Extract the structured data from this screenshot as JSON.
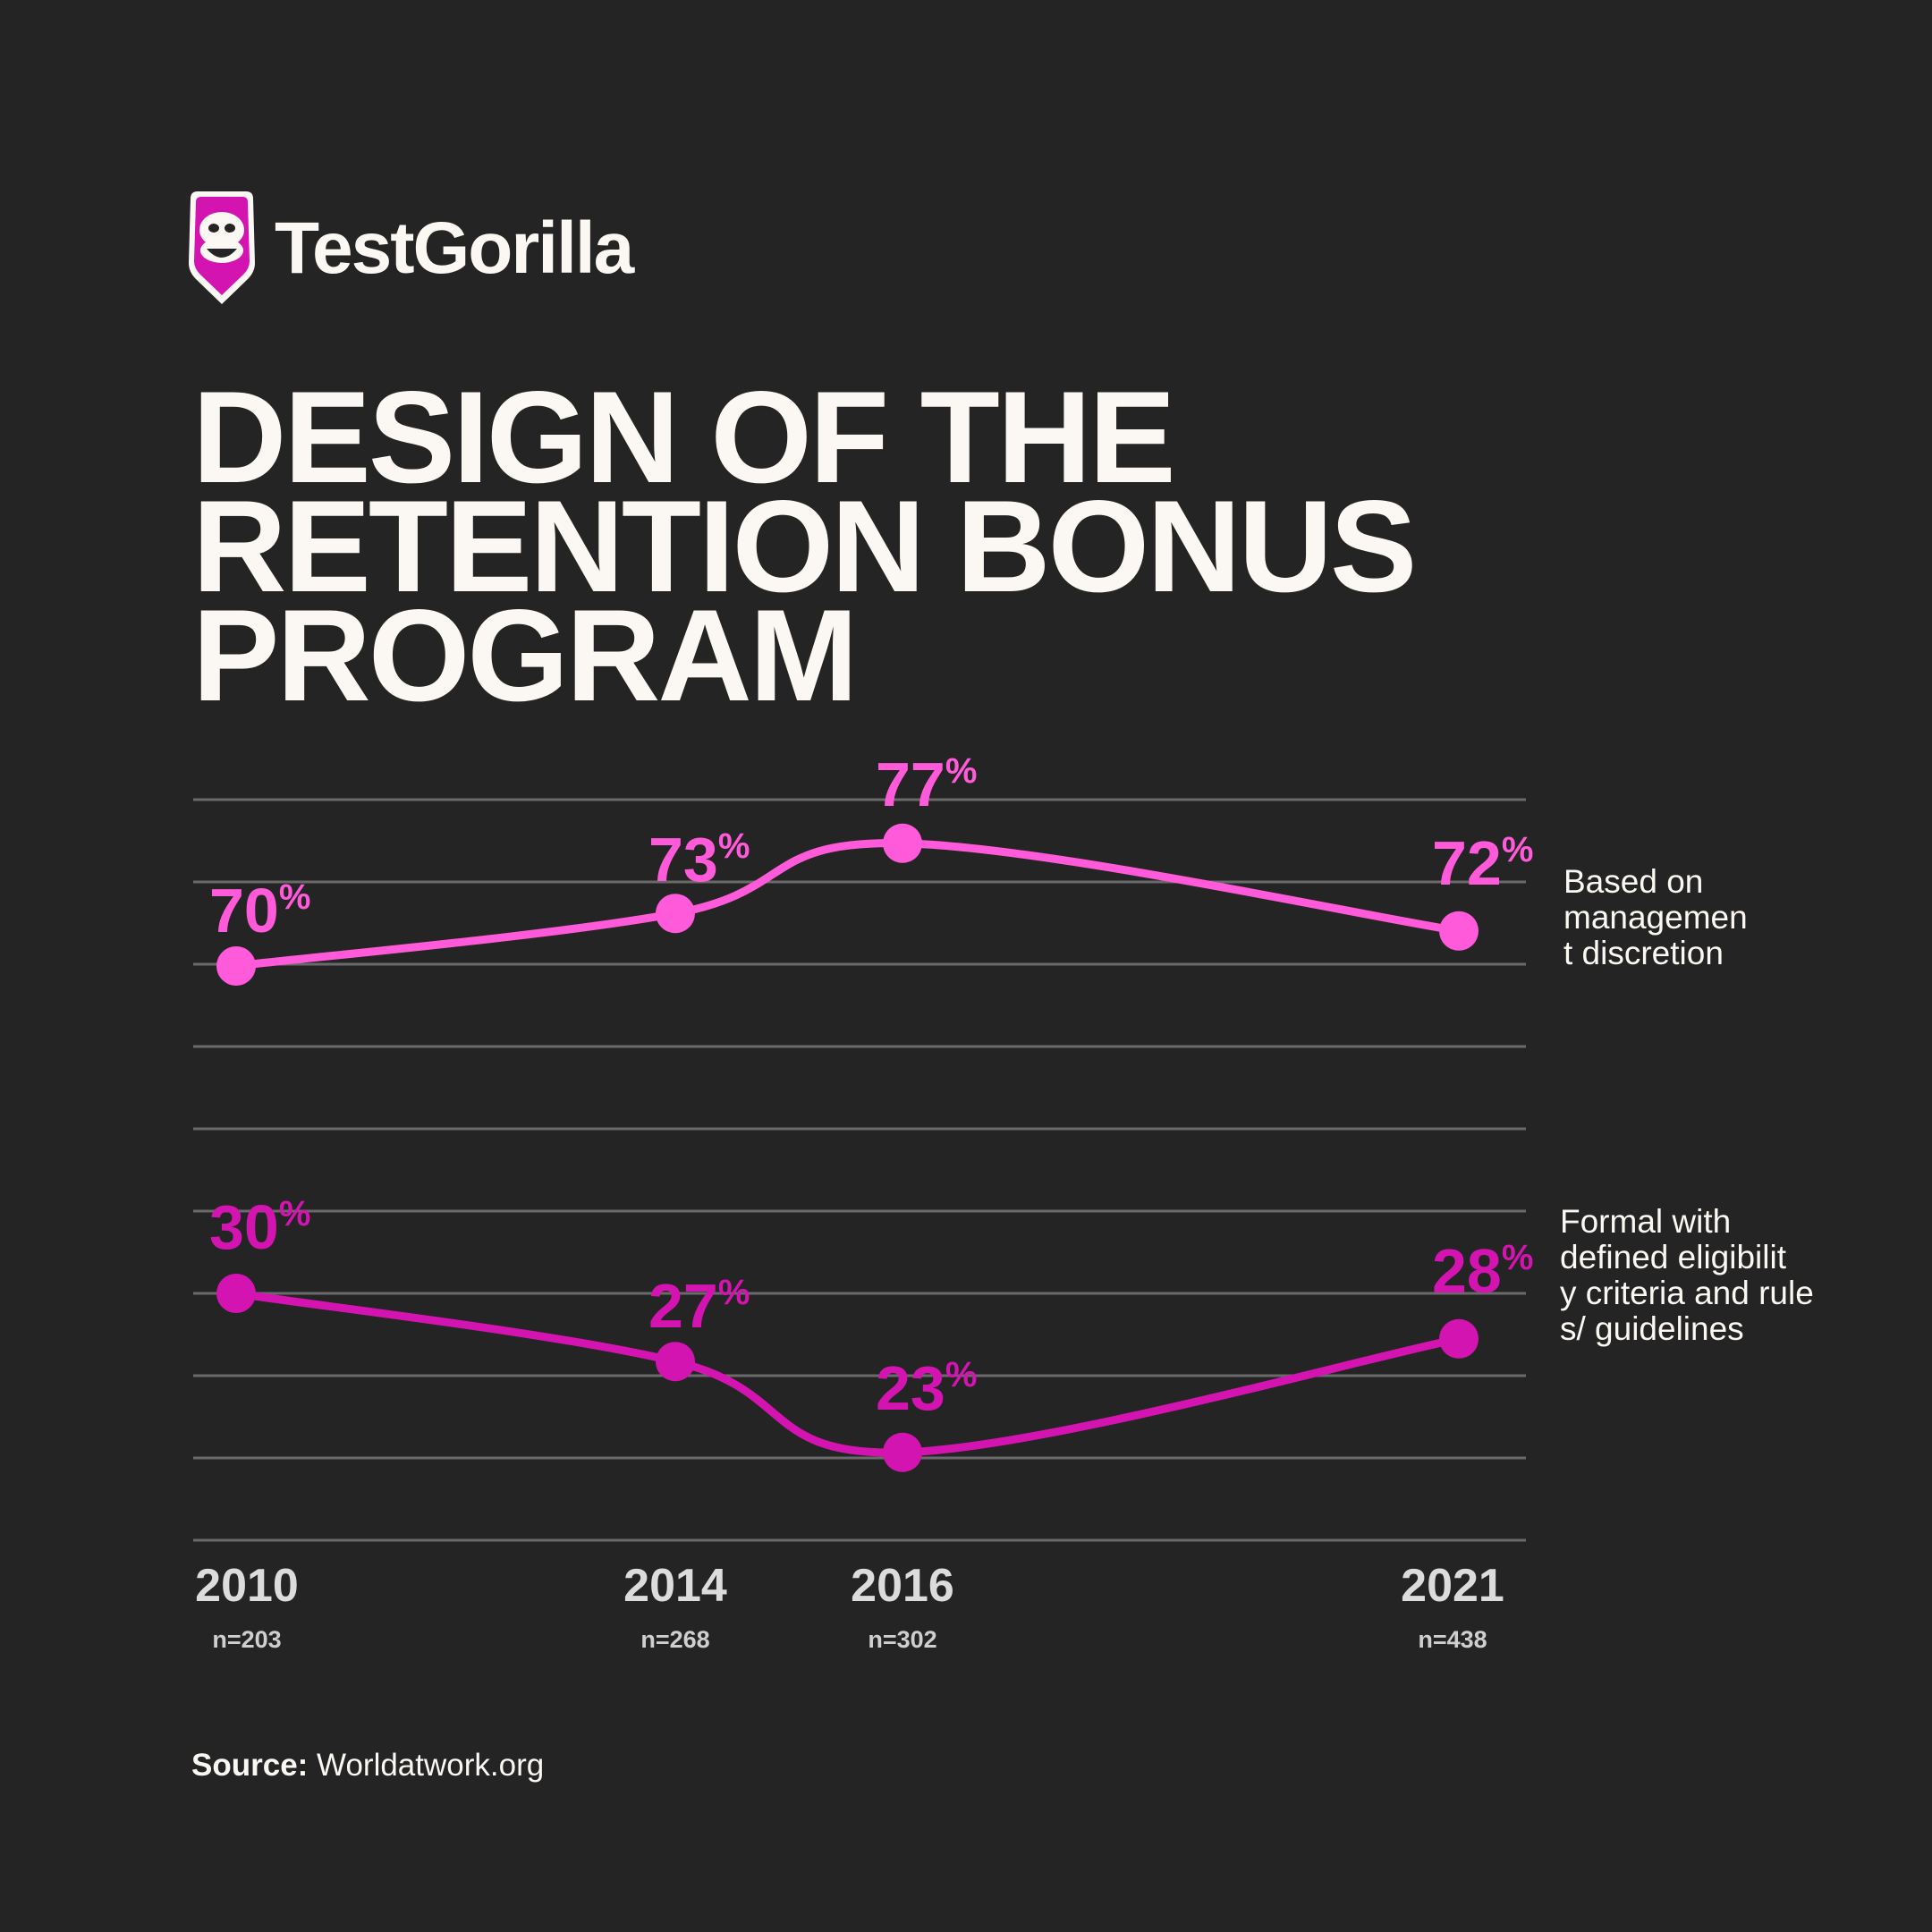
{
  "brand": {
    "name": "TestGorilla",
    "icon": "gorilla-shield-logo-icon"
  },
  "title_lines": [
    "DESIGN OF THE",
    "RETENTION BONUS",
    "PROGRAM"
  ],
  "source": {
    "label": "Source:",
    "value": "Worldatwork.org"
  },
  "colors": {
    "background": "#242424",
    "series_1": "#ff5ad9",
    "series_2": "#d414b0",
    "text": "#fbf8f3",
    "grid": "#6a6a6a"
  },
  "chart_data": {
    "type": "line",
    "x": [
      "2010",
      "2014",
      "2016",
      "2021"
    ],
    "x_sublabels": [
      "n=203",
      "n=268",
      "n=302",
      "n=438"
    ],
    "series": [
      {
        "name": "Based on management discretion",
        "values": [
          70,
          73,
          77,
          72
        ]
      },
      {
        "name": "Formal with defined eligibility criteria and rules/ guidelines",
        "values": [
          30,
          27,
          23,
          28
        ]
      }
    ],
    "value_suffix": "%",
    "grid": true,
    "legend": "right"
  }
}
